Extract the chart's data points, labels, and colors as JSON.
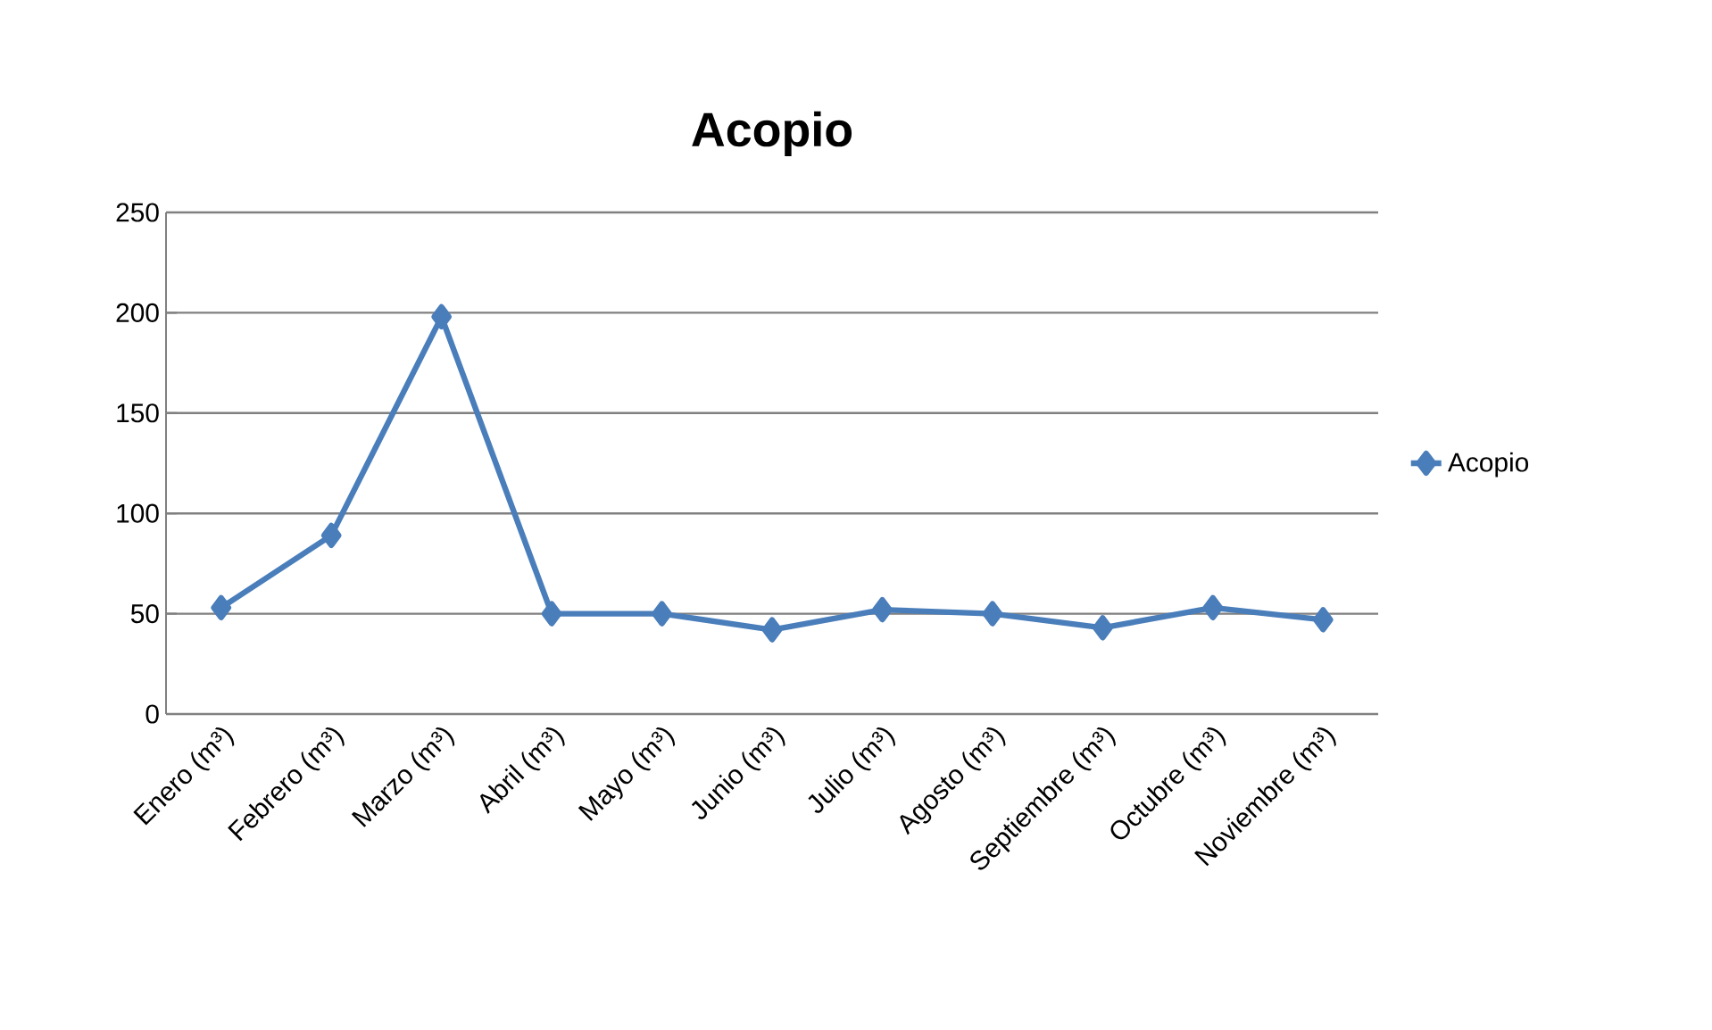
{
  "chart_data": {
    "type": "line",
    "title": "Acopio",
    "categories": [
      "Enero (m³)",
      "Febrero (m³)",
      "Marzo (m³)",
      "Abril (m³)",
      "Mayo (m³)",
      "Junio (m³)",
      "Julio (m³)",
      "Agosto (m³)",
      "Septiembre (m³)",
      "Octubre (m³)",
      "Noviembre (m³)"
    ],
    "series": [
      {
        "name": "Acopio",
        "color": "#4a7ebb",
        "values": [
          53,
          89,
          198,
          50,
          50,
          42,
          52,
          50,
          43,
          53,
          47
        ]
      }
    ],
    "ylim": [
      0,
      250
    ],
    "yticks": [
      0,
      50,
      100,
      150,
      200,
      250
    ],
    "grid": "y",
    "legend": "right",
    "marker": "diamond",
    "line_style": "solid"
  }
}
